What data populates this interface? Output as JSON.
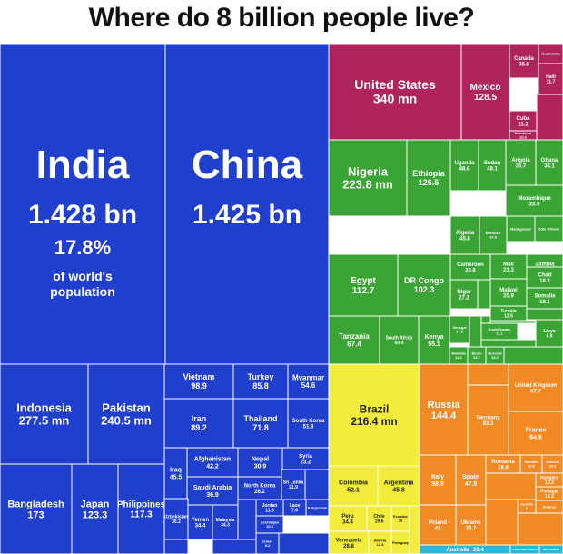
{
  "chart_data": {
    "type": "treemap",
    "title": "Where do 8 billion people live?",
    "colors": {
      "Asia": "#1f3fcc",
      "North America": "#b0245c",
      "Africa": "#3aa535",
      "South America": "#f3ec3a",
      "Europe": "#ef8a24",
      "Oceania": "#2fb5d5",
      "cell_border": "#ffffff"
    },
    "india_note": "17.8%\nof world's\npopulation",
    "cells": [
      {
        "country": "India",
        "value": "1.428 bn",
        "region": "Asia"
      },
      {
        "country": "China",
        "value": "1.425 bn",
        "region": "Asia"
      },
      {
        "country": "Indonesia",
        "value": "277.5 mn",
        "region": "Asia"
      },
      {
        "country": "Pakistan",
        "value": "240.5 mn",
        "region": "Asia"
      },
      {
        "country": "Bangladesh",
        "value": "173",
        "region": "Asia"
      },
      {
        "country": "Japan",
        "value": "123.3",
        "region": "Asia"
      },
      {
        "country": "Philippines",
        "value": "117.3",
        "region": "Asia"
      },
      {
        "country": "Vietnam",
        "value": "98.9",
        "region": "Asia"
      },
      {
        "country": "Turkey",
        "value": "85.8",
        "region": "Asia"
      },
      {
        "country": "Myanmar",
        "value": "54.6",
        "region": "Asia"
      },
      {
        "country": "Iran",
        "value": "89.2",
        "region": "Asia"
      },
      {
        "country": "Thailand",
        "value": "71.8",
        "region": "Asia"
      },
      {
        "country": "South Korea",
        "value": "51.8",
        "region": "Asia"
      },
      {
        "country": "Iraq",
        "value": "45.5",
        "region": "Asia"
      },
      {
        "country": "Afghanistan",
        "value": "42.2",
        "region": "Asia"
      },
      {
        "country": "Nepal",
        "value": "30.9",
        "region": "Asia"
      },
      {
        "country": "Syria",
        "value": "23.2",
        "region": "Asia"
      },
      {
        "country": "Saudi Arabia",
        "value": "36.9",
        "region": "Asia"
      },
      {
        "country": "North Korea",
        "value": "26.2",
        "region": "Asia"
      },
      {
        "country": "Sri Lanka",
        "value": "21.9",
        "region": "Asia"
      },
      {
        "country": "Uzbekistan",
        "value": "35.2",
        "region": "Asia"
      },
      {
        "country": "Yemen",
        "value": "34.4",
        "region": "Asia"
      },
      {
        "country": "Malaysia",
        "value": "34.3",
        "region": "Asia"
      },
      {
        "country": "Jordan",
        "value": "11.3",
        "region": "Asia"
      },
      {
        "country": "Laos",
        "value": "7.6",
        "region": "Asia"
      },
      {
        "country": "Kyrgyzstan",
        "value": "",
        "region": "Asia"
      },
      {
        "country": "Azerbaijan",
        "value": "10.4",
        "region": "Asia"
      },
      {
        "country": "Israel",
        "value": "9.2",
        "region": "Asia"
      },
      {
        "country": "United States",
        "value": "340 mn",
        "region": "North America"
      },
      {
        "country": "Mexico",
        "value": "128.5",
        "region": "North America"
      },
      {
        "country": "Canada",
        "value": "38.8",
        "region": "North America"
      },
      {
        "country": "Haiti",
        "value": "11.7",
        "region": "North America"
      },
      {
        "country": "Guatemala",
        "value": "",
        "region": "North America"
      },
      {
        "country": "Cuba",
        "value": "11.2",
        "region": "North America"
      },
      {
        "country": "Honduras",
        "value": "10.6",
        "region": "North America"
      },
      {
        "country": "Nigeria",
        "value": "223.8 mn",
        "region": "Africa"
      },
      {
        "country": "Ethiopia",
        "value": "126.5",
        "region": "Africa"
      },
      {
        "country": "Uganda",
        "value": "48.6",
        "region": "Africa"
      },
      {
        "country": "Sudan",
        "value": "48.1",
        "region": "Africa"
      },
      {
        "country": "Angola",
        "value": "36.7",
        "region": "Africa"
      },
      {
        "country": "Ghana",
        "value": "34.1",
        "region": "Africa"
      },
      {
        "country": "Mozambique",
        "value": "33.9",
        "region": "Africa"
      },
      {
        "country": "Algeria",
        "value": "45.6",
        "region": "Africa"
      },
      {
        "country": "Morocco",
        "value": "37.8",
        "region": "Africa"
      },
      {
        "country": "Madagascar",
        "value": "",
        "region": "Africa"
      },
      {
        "country": "Côte d'Ivoire",
        "value": "",
        "region": "Africa"
      },
      {
        "country": "Egypt",
        "value": "112.7",
        "region": "Africa"
      },
      {
        "country": "DR Congo",
        "value": "102.3",
        "region": "Africa"
      },
      {
        "country": "Cameroon",
        "value": "28.6",
        "region": "Africa"
      },
      {
        "country": "Mali",
        "value": "23.3",
        "region": "Africa"
      },
      {
        "country": "Zambia",
        "value": "20.6",
        "region": "Africa"
      },
      {
        "country": "Niger",
        "value": "27.2",
        "region": "Africa"
      },
      {
        "country": "Malawi",
        "value": "20.9",
        "region": "Africa"
      },
      {
        "country": "Chad",
        "value": "18.3",
        "region": "Africa"
      },
      {
        "country": "Somalia",
        "value": "18.1",
        "region": "Africa"
      },
      {
        "country": "Tunisia",
        "value": "12.5",
        "region": "Africa"
      },
      {
        "country": "Tanzania",
        "value": "67.4",
        "region": "Africa"
      },
      {
        "country": "South Africa",
        "value": "60.4",
        "region": "Africa"
      },
      {
        "country": "Kenya",
        "value": "55.1",
        "region": "Africa"
      },
      {
        "country": "Senegal",
        "value": "17.9",
        "region": "Africa"
      },
      {
        "country": "South Sudan",
        "value": "11.1",
        "region": "Africa"
      },
      {
        "country": "Libya",
        "value": "6.9",
        "region": "Africa"
      },
      {
        "country": "Rwanda",
        "value": "14.1",
        "region": "Africa"
      },
      {
        "country": "Benin",
        "value": "12.7",
        "region": "Africa"
      },
      {
        "country": "Burundi",
        "value": "13.2",
        "region": "Africa"
      },
      {
        "country": "Brazil",
        "value": "216.4 mn",
        "region": "South America"
      },
      {
        "country": "Colombia",
        "value": "52.1",
        "region": "South America"
      },
      {
        "country": "Argentina",
        "value": "45.8",
        "region": "South America"
      },
      {
        "country": "Peru",
        "value": "34.4",
        "region": "South America"
      },
      {
        "country": "Chile",
        "value": "19.6",
        "region": "South America"
      },
      {
        "country": "Ecuador",
        "value": "18",
        "region": "South America"
      },
      {
        "country": "Venezuela",
        "value": "28.8",
        "region": "South America"
      },
      {
        "country": "Bolivia",
        "value": "12.4",
        "region": "South America"
      },
      {
        "country": "Paraguay",
        "value": "",
        "region": "South America"
      },
      {
        "country": "Russia",
        "value": "144.4",
        "region": "Europe"
      },
      {
        "country": "Germany",
        "value": "83.3",
        "region": "Europe"
      },
      {
        "country": "United Kingdom",
        "value": "67.7",
        "region": "Europe"
      },
      {
        "country": "France",
        "value": "64.8",
        "region": "Europe"
      },
      {
        "country": "Italy",
        "value": "58.9",
        "region": "Europe"
      },
      {
        "country": "Spain",
        "value": "47.5",
        "region": "Europe"
      },
      {
        "country": "Romania",
        "value": "19.9",
        "region": "Europe"
      },
      {
        "country": "Sweden",
        "value": "10.6",
        "region": "Europe"
      },
      {
        "country": "Czechia",
        "value": "10.5",
        "region": "Europe"
      },
      {
        "country": "Hungary",
        "value": "10.2",
        "region": "Europe"
      },
      {
        "country": "Portugal",
        "value": "10.2",
        "region": "Europe"
      },
      {
        "country": "Austria",
        "value": "9",
        "region": "Europe"
      },
      {
        "country": "Belarus",
        "value": "",
        "region": "Europe"
      },
      {
        "country": "Poland",
        "value": "41",
        "region": "Europe"
      },
      {
        "country": "Ukraine",
        "value": "36.7",
        "region": "Europe"
      },
      {
        "country": "Australia",
        "value": "26.4",
        "region": "Oceania"
      },
      {
        "country": "Papua New Guinea",
        "value": "",
        "region": "Oceania"
      },
      {
        "country": "New Zealand",
        "value": "",
        "region": "Oceania"
      }
    ]
  }
}
